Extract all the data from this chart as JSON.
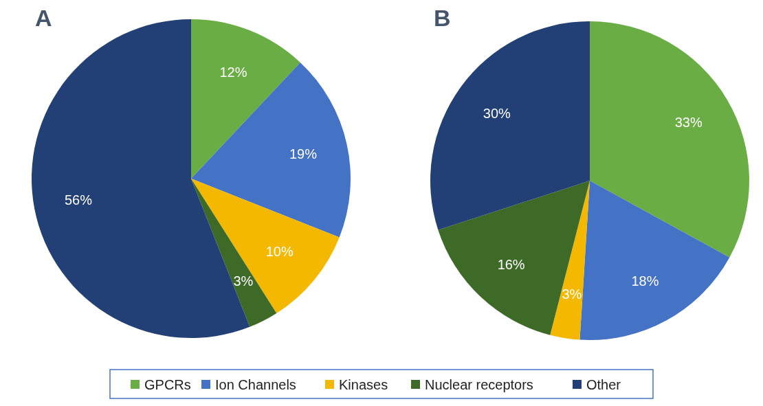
{
  "chart_data": [
    {
      "type": "pie",
      "title": "A",
      "categories": [
        "GPCRs",
        "Ion Channels",
        "Kinases",
        "Nuclear receptors",
        "Other"
      ],
      "values": [
        12,
        19,
        10,
        3,
        56
      ],
      "value_labels": [
        "12%",
        "19%",
        "10%",
        "3%",
        "56%"
      ],
      "colors": [
        "#6aad45",
        "#4472c4",
        "#f5b800",
        "#3d6b27",
        "#223f76"
      ],
      "legend": "bottom"
    },
    {
      "type": "pie",
      "title": "B",
      "categories": [
        null,
        null,
        null,
        null,
        null
      ],
      "values": [
        33,
        18,
        3,
        16,
        30
      ],
      "value_labels": [
        "33%",
        "18%",
        "3%",
        "16%",
        "30%"
      ],
      "colors": [
        "#6aad45",
        "#4472c4",
        "#f5b800",
        "#3d6b27",
        "#223f76"
      ]
    }
  ]
}
